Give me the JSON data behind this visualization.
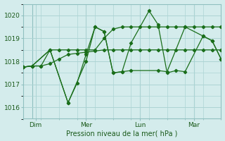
{
  "bg_color": "#d4ecec",
  "grid_color": "#acd4d4",
  "line_color": "#1a6e1a",
  "xlabel": "Pression niveau de la mer( hPa )",
  "ylim": [
    1015.5,
    1020.5
  ],
  "xlim": [
    0,
    11
  ],
  "day_labels": [
    "Dim",
    "Mer",
    "Lun",
    "Mar"
  ],
  "day_positions": [
    0.7,
    3.5,
    6.5,
    9.5
  ],
  "vline_positions": [
    0.5,
    3.5,
    6.5,
    9.5
  ],
  "series1_x": [
    0,
    0.5,
    1.0,
    1.5,
    2.0,
    2.5,
    3.0,
    3.5,
    4.0,
    4.5,
    5.0,
    5.5,
    6.0,
    6.5,
    7.0,
    7.5,
    8.0,
    8.5,
    9.0,
    9.5,
    10.0,
    10.5,
    11.0
  ],
  "series1_y": [
    1017.75,
    1017.8,
    1017.8,
    1017.9,
    1018.1,
    1018.3,
    1018.35,
    1018.4,
    1018.45,
    1018.5,
    1018.5,
    1018.5,
    1018.5,
    1018.5,
    1018.5,
    1018.5,
    1018.5,
    1018.5,
    1018.5,
    1018.5,
    1018.5,
    1018.5,
    1018.5
  ],
  "series2_x": [
    0,
    0.5,
    1.0,
    1.5,
    2.0,
    2.5,
    3.0,
    3.5,
    4.0,
    4.5,
    5.0,
    5.5,
    6.0,
    6.5,
    7.0,
    7.5,
    8.0,
    8.5,
    9.0,
    9.5,
    10.0,
    10.5,
    11.0
  ],
  "series2_y": [
    1017.75,
    1017.8,
    1017.8,
    1018.5,
    1018.5,
    1018.5,
    1018.5,
    1018.5,
    1018.5,
    1019.0,
    1019.4,
    1019.5,
    1019.5,
    1019.5,
    1019.5,
    1019.5,
    1019.5,
    1019.5,
    1019.5,
    1019.5,
    1019.5,
    1019.5,
    1019.5
  ],
  "series3_x": [
    0,
    0.5,
    1.5,
    2.5,
    3.0,
    3.5,
    4.0,
    4.5,
    5.0,
    5.5,
    6.0,
    7.0,
    7.5,
    8.0,
    8.5,
    9.0,
    10.0,
    10.5,
    11.0
  ],
  "series3_y": [
    1017.75,
    1017.8,
    1018.5,
    1016.2,
    1017.05,
    1018.3,
    1019.5,
    1019.3,
    1017.5,
    1017.55,
    1018.8,
    1020.2,
    1019.6,
    1017.5,
    1017.6,
    1017.55,
    1019.1,
    1018.9,
    1018.1
  ],
  "series4_x": [
    0,
    0.5,
    1.5,
    2.5,
    3.5,
    4.0,
    4.5,
    5.0,
    5.5,
    6.0,
    7.5,
    8.0,
    9.0,
    10.0,
    10.5,
    11.0
  ],
  "series4_y": [
    1017.75,
    1017.8,
    1018.5,
    1016.2,
    1018.0,
    1019.5,
    1019.3,
    1017.5,
    1017.55,
    1017.6,
    1017.6,
    1017.55,
    1019.5,
    1019.1,
    1018.9,
    1018.1
  ]
}
